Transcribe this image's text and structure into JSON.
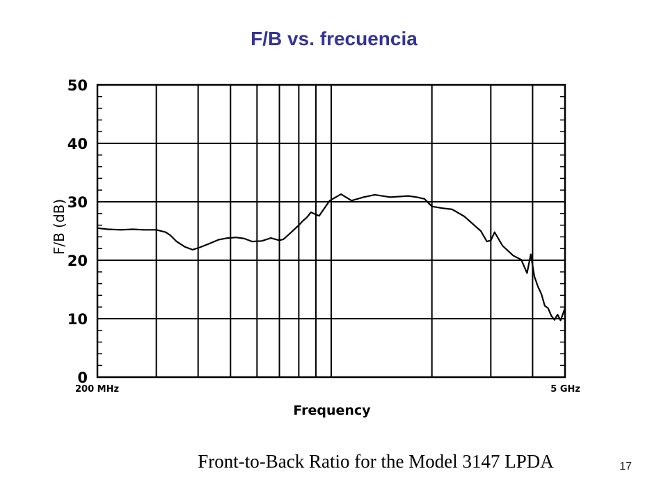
{
  "slide": {
    "title": "F/B vs. frecuencia",
    "page_number": "17",
    "title_color": "#33339a"
  },
  "chart_data": {
    "type": "line",
    "title": "Front-to-Back Ratio for the Model 3147 LPDA",
    "xlabel": "Frequency",
    "ylabel": "F/B (dB)",
    "x_scale": "log",
    "x_unit": "MHz",
    "xlim": [
      200,
      5000
    ],
    "ylim": [
      0,
      50
    ],
    "x_tick_labels": [
      {
        "value": 200,
        "label": "200 MHz"
      },
      {
        "value": 5000,
        "label": "5 GHz"
      }
    ],
    "y_ticks": [
      0,
      10,
      20,
      30,
      40,
      50
    ],
    "grid": true,
    "x_gridlines": [
      300,
      400,
      500,
      600,
      700,
      800,
      900,
      1000,
      2000,
      3000,
      4000
    ],
    "line_color": "#000000",
    "series": [
      {
        "x": [
          200,
          215,
          235,
          255,
          275,
          300,
          320,
          330,
          345,
          365,
          385,
          405,
          430,
          460,
          490,
          520,
          550,
          580,
          620,
          660,
          700,
          720,
          760,
          800,
          825,
          845,
          870,
          920,
          990,
          1070,
          1150,
          1250,
          1350,
          1500,
          1700,
          1800,
          1900,
          2000,
          2150,
          2300,
          2500,
          2700,
          2800,
          2920,
          3000,
          3080,
          3250,
          3500,
          3700,
          3850,
          3950,
          4050,
          4150,
          4250,
          4350,
          4450,
          4550,
          4650,
          4750,
          4850,
          5000
        ],
        "y": [
          25.5,
          25.3,
          25.2,
          25.3,
          25.2,
          25.2,
          24.8,
          24.3,
          23.2,
          22.3,
          21.8,
          22.2,
          22.8,
          23.5,
          23.8,
          23.9,
          23.7,
          23.2,
          23.3,
          23.8,
          23.4,
          23.6,
          24.8,
          26.0,
          26.8,
          27.3,
          28.2,
          27.6,
          30.2,
          31.3,
          30.2,
          30.8,
          31.2,
          30.8,
          31.0,
          30.8,
          30.5,
          29.2,
          28.9,
          28.7,
          27.5,
          25.8,
          25.0,
          23.2,
          23.4,
          24.8,
          22.5,
          20.8,
          20.1,
          17.8,
          21.0,
          17.2,
          15.5,
          14.2,
          12.2,
          11.8,
          10.5,
          9.8,
          10.7,
          9.7,
          11.8
        ]
      }
    ]
  }
}
